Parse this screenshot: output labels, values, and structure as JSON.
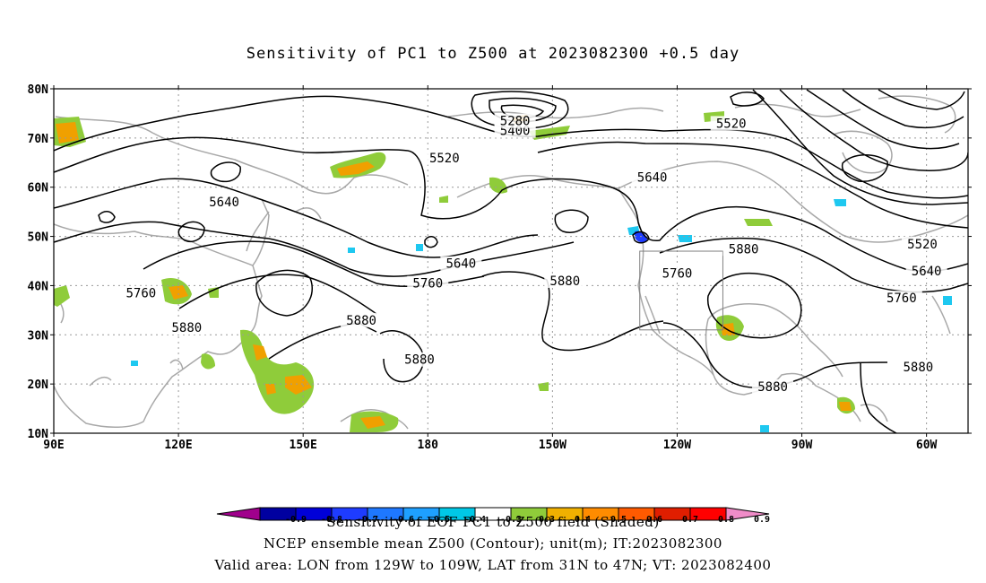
{
  "title": "Sensitivity of PC1 to Z500 at 2023082300 +0.5 day",
  "lat_axis": {
    "labels": [
      "80N",
      "70N",
      "60N",
      "50N",
      "40N",
      "30N",
      "20N",
      "10N"
    ],
    "values": [
      80,
      70,
      60,
      50,
      40,
      30,
      20,
      10
    ]
  },
  "lon_axis": {
    "labels": [
      "90E",
      "120E",
      "150E",
      "180",
      "150W",
      "120W",
      "90W",
      "60W"
    ],
    "values": [
      90,
      120,
      150,
      180,
      210,
      240,
      270,
      300
    ]
  },
  "map_extent": {
    "lon": [
      90,
      310
    ],
    "lat": [
      10,
      80
    ]
  },
  "valid_box": {
    "lon": [
      231,
      251
    ],
    "lat": [
      31,
      47
    ]
  },
  "contour_labels": [
    {
      "text": "5520",
      "lon": 184,
      "lat": 66
    },
    {
      "text": "5520",
      "lon": 253,
      "lat": 73
    },
    {
      "text": "5400",
      "lon": 201,
      "lat": 71.5
    },
    {
      "text": "5280",
      "lon": 201,
      "lat": 73.5
    },
    {
      "text": "5640",
      "lon": 234,
      "lat": 62
    },
    {
      "text": "5640",
      "lon": 131,
      "lat": 57
    },
    {
      "text": "5640",
      "lon": 188,
      "lat": 44.5
    },
    {
      "text": "5640",
      "lon": 300,
      "lat": 43
    },
    {
      "text": "5520",
      "lon": 299,
      "lat": 48.5
    },
    {
      "text": "5760",
      "lon": 111,
      "lat": 38.5
    },
    {
      "text": "5760",
      "lon": 180,
      "lat": 40.5
    },
    {
      "text": "5760",
      "lon": 240,
      "lat": 42.5
    },
    {
      "text": "5760",
      "lon": 294,
      "lat": 37.5
    },
    {
      "text": "5880",
      "lon": 122,
      "lat": 31.5
    },
    {
      "text": "5880",
      "lon": 164,
      "lat": 33
    },
    {
      "text": "5880",
      "lon": 178,
      "lat": 25
    },
    {
      "text": "5880",
      "lon": 213,
      "lat": 41
    },
    {
      "text": "5880",
      "lon": 256,
      "lat": 47.5
    },
    {
      "text": "5880",
      "lon": 263,
      "lat": 19.5
    },
    {
      "text": "5880",
      "lon": 298,
      "lat": 23.5
    }
  ],
  "legend": {
    "labels": [
      "-0.9",
      "-0.8",
      "-0.7",
      "-0.6",
      "-0.5",
      "-0.4",
      "-0.3",
      "0.3",
      "0.4",
      "0.5",
      "0.6",
      "0.7",
      "0.8",
      "0.9"
    ],
    "colors": [
      "#a0008c",
      "#0000a0",
      "#0000d8",
      "#1e3cff",
      "#1e78ff",
      "#1ea0ff",
      "#00c8e6",
      "#ffffff",
      "#8fcc3a",
      "#f0b000",
      "#ff8c00",
      "#ff5a00",
      "#e01e00",
      "#ff0000",
      "#f08cc8"
    ]
  },
  "captions": {
    "line1": "Sensitivity of EOF PC1 to Z500 field (Shaded)",
    "line2": "NCEP ensemble mean Z500 (Contour); unit(m); IT:2023082300",
    "line3": "Valid area: LON from 129W to 109W, LAT from 31N to 47N; VT: 2023082400"
  },
  "colors": {
    "contour": "#000000",
    "coast": "#a8a8a8",
    "grid": "#999999",
    "green": "#8fcc3a",
    "orange": "#f0a000",
    "red": "#ff5a00",
    "cyan": "#1ec8f0",
    "blue": "#1e3cff"
  }
}
